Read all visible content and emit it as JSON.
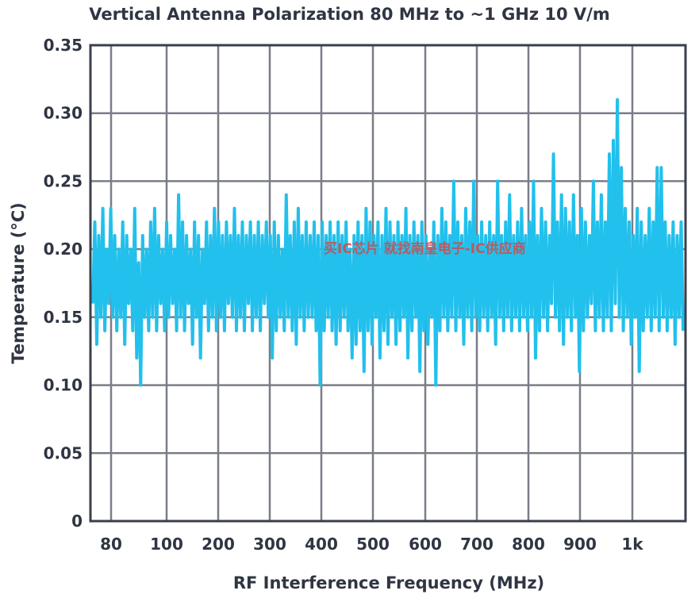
{
  "watermark": "买IC芯片 就找南皇电子-IC供应商",
  "chart_data": {
    "type": "line",
    "title": "Vertical Antenna Polarization 80 MHz to ~1 GHz 10 V/m",
    "xlabel": "RF Interference Frequency (MHz)",
    "ylabel": "Temperature (°C)",
    "x_tick_labels": [
      "80",
      "100",
      "200",
      "300",
      "400",
      "500",
      "600",
      "700",
      "800",
      "900",
      "1k"
    ],
    "y_tick_labels": [
      "0",
      "0.05",
      "0.10",
      "0.15",
      "0.20",
      "0.25",
      "0.30",
      "0.35"
    ],
    "ylim": [
      0,
      0.35
    ],
    "grid": true,
    "series_color": "#22c0ec",
    "grid_color": "#7a7d88",
    "frame_color": "#3a3f4c",
    "series": [
      {
        "values": [
          0.16,
          0.22,
          0.13,
          0.21,
          0.15,
          0.23,
          0.14,
          0.2,
          0.16,
          0.23,
          0.15,
          0.21,
          0.14,
          0.2,
          0.15,
          0.22,
          0.13,
          0.21,
          0.16,
          0.2,
          0.14,
          0.23,
          0.12,
          0.19,
          0.1,
          0.21,
          0.15,
          0.2,
          0.14,
          0.22,
          0.15,
          0.23,
          0.14,
          0.21,
          0.16,
          0.2,
          0.14,
          0.22,
          0.15,
          0.21,
          0.16,
          0.2,
          0.14,
          0.24,
          0.15,
          0.22,
          0.14,
          0.21,
          0.16,
          0.2,
          0.13,
          0.22,
          0.15,
          0.21,
          0.12,
          0.2,
          0.16,
          0.22,
          0.14,
          0.21,
          0.15,
          0.23,
          0.14,
          0.22,
          0.15,
          0.21,
          0.14,
          0.22,
          0.16,
          0.21,
          0.15,
          0.23,
          0.14,
          0.21,
          0.15,
          0.22,
          0.14,
          0.21,
          0.16,
          0.22,
          0.14,
          0.21,
          0.15,
          0.22,
          0.14,
          0.21,
          0.16,
          0.22,
          0.15,
          0.21,
          0.12,
          0.22,
          0.14,
          0.21,
          0.15,
          0.2,
          0.14,
          0.24,
          0.15,
          0.21,
          0.14,
          0.22,
          0.13,
          0.23,
          0.15,
          0.21,
          0.14,
          0.22,
          0.15,
          0.21,
          0.15,
          0.22,
          0.14,
          0.21,
          0.1,
          0.22,
          0.14,
          0.21,
          0.15,
          0.22,
          0.14,
          0.21,
          0.13,
          0.22,
          0.14,
          0.21,
          0.15,
          0.22,
          0.14,
          0.2,
          0.12,
          0.21,
          0.13,
          0.22,
          0.14,
          0.21,
          0.11,
          0.23,
          0.14,
          0.22,
          0.13,
          0.21,
          0.15,
          0.22,
          0.12,
          0.21,
          0.14,
          0.23,
          0.13,
          0.22,
          0.15,
          0.21,
          0.13,
          0.22,
          0.14,
          0.21,
          0.15,
          0.23,
          0.12,
          0.21,
          0.14,
          0.22,
          0.15,
          0.21,
          0.11,
          0.22,
          0.14,
          0.21,
          0.13,
          0.2,
          0.15,
          0.22,
          0.1,
          0.21,
          0.14,
          0.23,
          0.15,
          0.22,
          0.14,
          0.21,
          0.15,
          0.25,
          0.14,
          0.22,
          0.15,
          0.21,
          0.13,
          0.23,
          0.15,
          0.22,
          0.14,
          0.25,
          0.15,
          0.21,
          0.14,
          0.22,
          0.15,
          0.21,
          0.14,
          0.22,
          0.15,
          0.21,
          0.13,
          0.25,
          0.15,
          0.21,
          0.14,
          0.22,
          0.15,
          0.24,
          0.14,
          0.21,
          0.15,
          0.22,
          0.14,
          0.23,
          0.15,
          0.21,
          0.14,
          0.22,
          0.15,
          0.25,
          0.12,
          0.21,
          0.14,
          0.23,
          0.15,
          0.22,
          0.14,
          0.21,
          0.16,
          0.27,
          0.15,
          0.22,
          0.14,
          0.24,
          0.13,
          0.23,
          0.15,
          0.22,
          0.14,
          0.24,
          0.15,
          0.21,
          0.11,
          0.23,
          0.14,
          0.22,
          0.15,
          0.21,
          0.16,
          0.25,
          0.14,
          0.22,
          0.15,
          0.24,
          0.14,
          0.22,
          0.15,
          0.27,
          0.14,
          0.28,
          0.16,
          0.31,
          0.15,
          0.26,
          0.14,
          0.23,
          0.15,
          0.22,
          0.13,
          0.21,
          0.15,
          0.23,
          0.11,
          0.22,
          0.14,
          0.21,
          0.15,
          0.23,
          0.14,
          0.22,
          0.15,
          0.26,
          0.14,
          0.26,
          0.15,
          0.22,
          0.14,
          0.21,
          0.15,
          0.22,
          0.13,
          0.21,
          0.15,
          0.22,
          0.14
        ]
      }
    ]
  }
}
